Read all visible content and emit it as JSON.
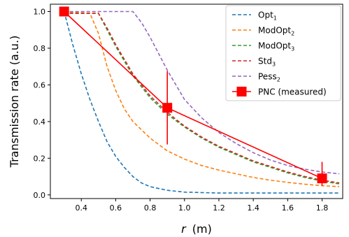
{
  "chart_data": {
    "type": "line",
    "xlabel_var": "r",
    "xlabel_unit": "(m)",
    "ylabel": "Transmission rate (a.u.)",
    "xlim": [
      0.22,
      1.92
    ],
    "ylim": [
      -0.02,
      1.04
    ],
    "x_ticks": [
      0.4,
      0.6,
      0.8,
      1.0,
      1.2,
      1.4,
      1.6,
      1.8
    ],
    "x_tick_labels": [
      "0.4",
      "0.6",
      "0.8",
      "1.0",
      "1.2",
      "1.4",
      "1.6",
      "1.8"
    ],
    "y_ticks": [
      0.0,
      0.2,
      0.4,
      0.6,
      0.8,
      1.0
    ],
    "y_tick_labels": [
      "0.0",
      "0.2",
      "0.4",
      "0.6",
      "0.8",
      "1.0"
    ],
    "grid": false,
    "legend_position": "top-right",
    "series": [
      {
        "name_main": "Opt",
        "name_sub": "1",
        "color": "#1f77b4",
        "style": "dashed",
        "x": [
          0.3,
          0.35,
          0.4,
          0.45,
          0.5,
          0.55,
          0.6,
          0.65,
          0.7,
          0.75,
          0.8,
          0.9,
          1.0,
          1.2,
          1.4,
          1.6,
          1.8,
          1.9
        ],
        "y": [
          1.0,
          0.82,
          0.66,
          0.52,
          0.4,
          0.29,
          0.21,
          0.15,
          0.1,
          0.065,
          0.045,
          0.025,
          0.015,
          0.01,
          0.01,
          0.01,
          0.01,
          0.01
        ]
      },
      {
        "name_main": "ModOpt",
        "name_sub": "2",
        "color": "#ff7f0e",
        "style": "dashed",
        "x": [
          0.3,
          0.45,
          0.5,
          0.55,
          0.6,
          0.65,
          0.7,
          0.8,
          0.9,
          1.0,
          1.1,
          1.2,
          1.3,
          1.4,
          1.5,
          1.6,
          1.7,
          1.8,
          1.9
        ],
        "y": [
          1.0,
          0.99,
          0.88,
          0.7,
          0.57,
          0.47,
          0.4,
          0.31,
          0.24,
          0.195,
          0.16,
          0.135,
          0.115,
          0.095,
          0.08,
          0.068,
          0.058,
          0.05,
          0.045
        ]
      },
      {
        "name_main": "ModOpt",
        "name_sub": "3",
        "color": "#2ca02c",
        "style": "dashed",
        "x": [
          0.3,
          0.5,
          0.55,
          0.6,
          0.7,
          0.8,
          0.9,
          1.0,
          1.1,
          1.2,
          1.3,
          1.4,
          1.5,
          1.6,
          1.7,
          1.8,
          1.9
        ],
        "y": [
          0.99,
          0.99,
          0.9,
          0.81,
          0.65,
          0.53,
          0.44,
          0.37,
          0.31,
          0.26,
          0.22,
          0.18,
          0.15,
          0.12,
          0.095,
          0.075,
          0.06
        ]
      },
      {
        "name_main": "Std",
        "name_sub": "3",
        "color": "#d62728",
        "style": "dashed",
        "x": [
          0.3,
          0.5,
          0.55,
          0.6,
          0.7,
          0.8,
          0.9,
          1.0,
          1.1,
          1.2,
          1.3,
          1.4,
          1.5,
          1.6,
          1.7,
          1.8,
          1.9
        ],
        "y": [
          0.99,
          0.99,
          0.91,
          0.82,
          0.66,
          0.54,
          0.45,
          0.375,
          0.315,
          0.265,
          0.225,
          0.185,
          0.155,
          0.125,
          0.1,
          0.08,
          0.065
        ]
      },
      {
        "name_main": "Pess",
        "name_sub": "2",
        "color": "#9467bd",
        "style": "dashed",
        "x": [
          0.3,
          0.7,
          0.75,
          0.8,
          0.85,
          0.9,
          1.0,
          1.1,
          1.2,
          1.3,
          1.4,
          1.5,
          1.6,
          1.7,
          1.8,
          1.9
        ],
        "y": [
          1.0,
          1.0,
          0.94,
          0.86,
          0.77,
          0.68,
          0.52,
          0.42,
          0.34,
          0.28,
          0.23,
          0.19,
          0.16,
          0.14,
          0.125,
          0.115
        ]
      },
      {
        "name_main": "PNC (measured)",
        "name_sub": "",
        "color": "#ff0000",
        "style": "solid-marker",
        "x": [
          0.3,
          0.9,
          1.8
        ],
        "y": [
          1.0,
          0.475,
          0.09
        ],
        "err_low": [
          0.0,
          0.2,
          0.04
        ],
        "err_high": [
          0.0,
          0.2,
          0.09
        ]
      }
    ]
  }
}
